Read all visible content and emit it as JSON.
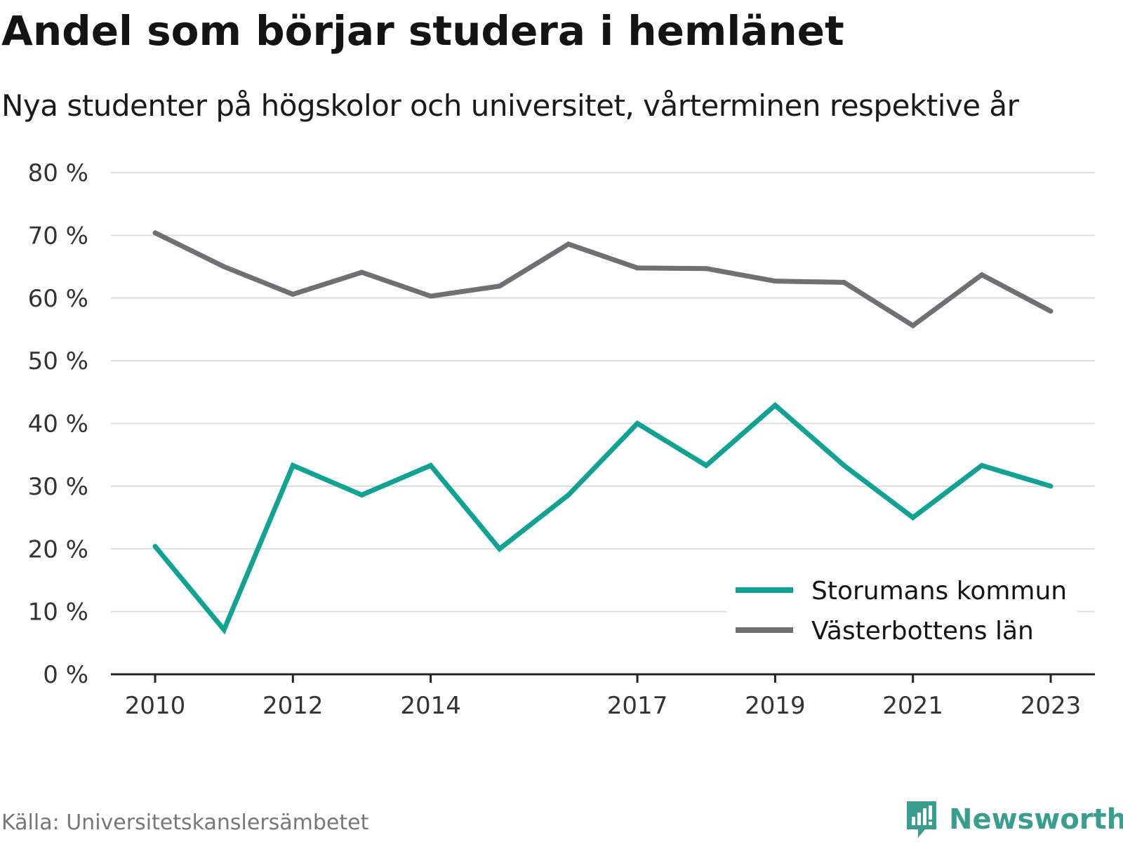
{
  "title": "Andel som börjar studera i hemlänet",
  "subtitle": "Nya studenter på högskolor och universitet, vårterminen respektive år",
  "source": "Källa: Universitetskanslersämbetet",
  "brand": "Newsworthy",
  "colors": {
    "teal": "#10a394",
    "gray": "#6f6f74",
    "brand": "#3a9e8f"
  },
  "chart_data": {
    "type": "line",
    "title": "Andel som börjar studera i hemlänet",
    "subtitle": "Nya studenter på högskolor och universitet, vårterminen respektive år",
    "x": [
      2010,
      2011,
      2012,
      2013,
      2014,
      2015,
      2016,
      2017,
      2018,
      2019,
      2020,
      2021,
      2022,
      2023
    ],
    "x_tick_labels": [
      "2010",
      "2012",
      "2014",
      "2017",
      "2019",
      "2021",
      "2023"
    ],
    "y_tick_labels": [
      "0 %",
      "10 %",
      "20 %",
      "30 %",
      "40 %",
      "50 %",
      "60 %",
      "70 %",
      "80 %"
    ],
    "ylim": [
      0,
      80
    ],
    "grid": true,
    "legend_position": "bottom-right",
    "series": [
      {
        "name": "Storumans kommun",
        "color": "#10a394",
        "values": [
          20.4,
          7.1,
          33.3,
          28.6,
          33.3,
          20.0,
          28.6,
          40.0,
          33.3,
          42.9,
          33.3,
          25.0,
          33.3,
          30.0
        ]
      },
      {
        "name": "Västerbottens län",
        "color": "#6f6f74",
        "values": [
          70.4,
          65.0,
          60.6,
          64.1,
          60.3,
          61.9,
          68.6,
          64.8,
          64.7,
          62.7,
          62.5,
          55.6,
          63.7,
          57.9
        ]
      }
    ]
  }
}
